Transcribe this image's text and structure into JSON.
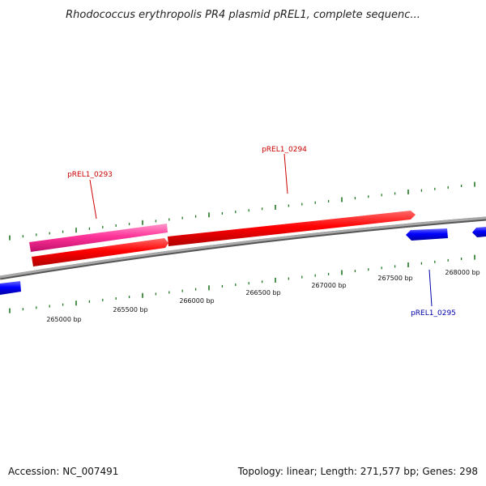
{
  "title": "Rhodococcus erythropolis PR4 plasmid pREL1, complete sequenc...",
  "footer": {
    "accession": "Accession: NC_007491",
    "summary": "Topology: linear; Length: 271,577 bp; Genes: 298"
  },
  "ticks": [
    "265000 bp",
    "265500 bp",
    "266000 bp",
    "266500 bp",
    "267000 bp",
    "267500 bp",
    "268000 bp"
  ],
  "genes": [
    {
      "id": "pREL1_0293",
      "label": "pREL1_0293",
      "color": "#cc0000"
    },
    {
      "id": "pREL1_0294",
      "label": "pREL1_0294",
      "color": "#cc0000"
    },
    {
      "id": "pREL1_0295",
      "label": "pREL1_0295",
      "color": "#0000aa"
    }
  ],
  "colors": {
    "backbone": "#888888",
    "forward_gene": "#ff0000",
    "highlight_gene": "#ff3399",
    "reverse_gene": "#0000ff",
    "scale_marks": "#227722"
  }
}
